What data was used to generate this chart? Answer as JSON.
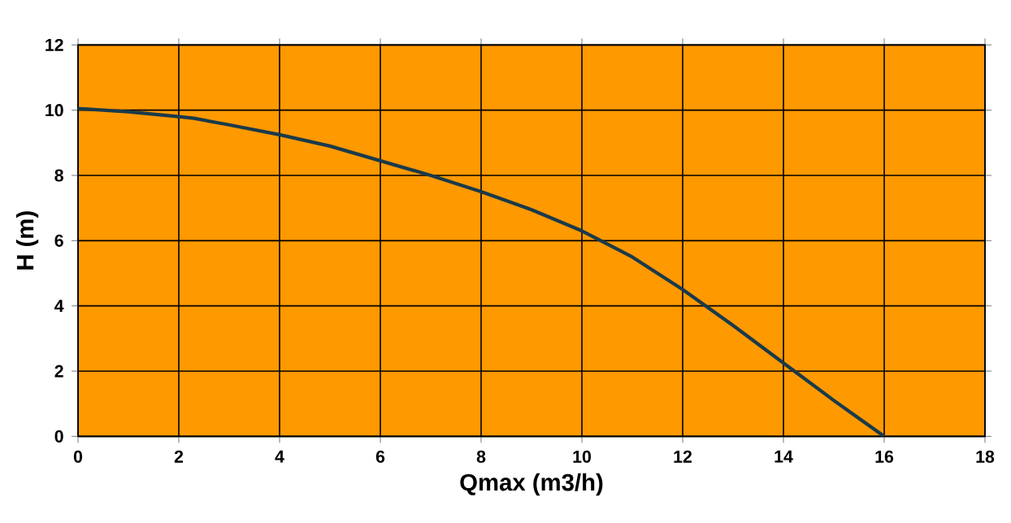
{
  "chart_data": {
    "type": "line",
    "xlabel": "Qmax (m3/h)",
    "ylabel": "H (m)",
    "x": [
      0,
      1,
      2,
      2.3,
      3,
      4,
      5,
      6,
      7,
      8,
      9,
      10,
      11,
      12,
      13,
      14,
      15,
      16
    ],
    "series": [
      {
        "color": "#1a3a4a",
        "values": [
          10.05,
          9.95,
          9.8,
          9.75,
          9.55,
          9.25,
          8.9,
          8.45,
          8.0,
          7.5,
          6.95,
          6.3,
          5.5,
          4.5,
          3.4,
          2.25,
          1.1,
          0
        ]
      }
    ],
    "xlim": [
      0,
      18
    ],
    "xticks": [
      0,
      2,
      4,
      6,
      8,
      10,
      12,
      14,
      16,
      18
    ],
    "ylim": [
      0,
      12
    ],
    "yticks": [
      0,
      2,
      4,
      6,
      8,
      10,
      12
    ],
    "grid": true,
    "marker": "none",
    "line_style": "solid"
  }
}
